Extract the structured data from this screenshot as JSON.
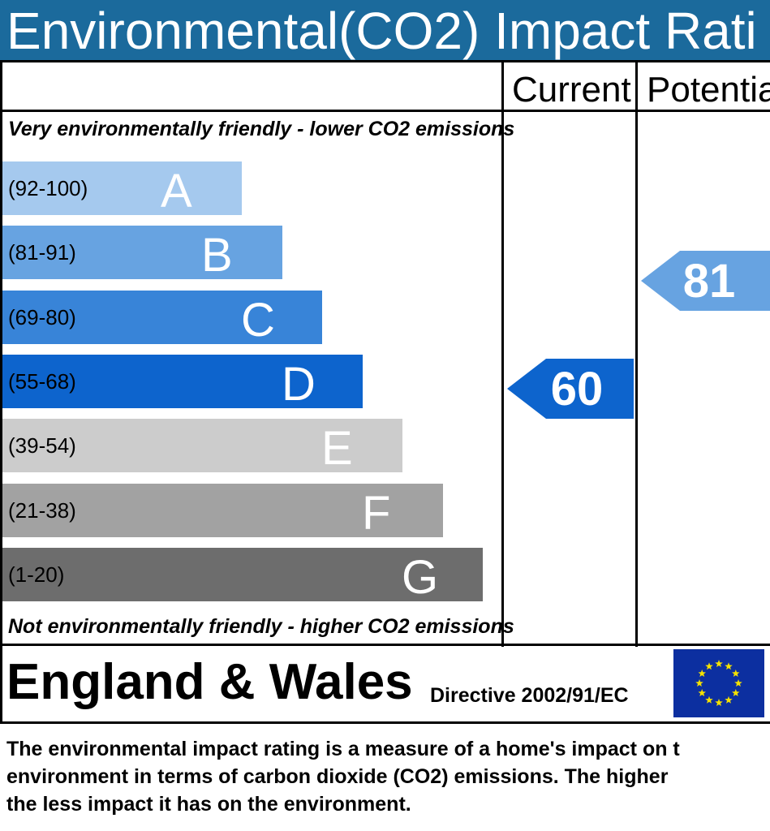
{
  "header": {
    "title": "Environmental(CO2) Impact Rati"
  },
  "columns": {
    "current": "Current",
    "potential": "Potentia"
  },
  "captions": {
    "top": "Very environmentally friendly - lower CO2 emissions",
    "bottom": "Not environmentally friendly - higher CO2 emissions"
  },
  "chart_data": {
    "type": "bar",
    "bands": [
      {
        "range": "(92-100)",
        "letter": "A",
        "color": "#a5c9ee"
      },
      {
        "range": "(81-91)",
        "letter": "B",
        "color": "#67a3e1"
      },
      {
        "range": "(69-80)",
        "letter": "C",
        "color": "#3884d8"
      },
      {
        "range": "(55-68)",
        "letter": "D",
        "color": "#0d64cd"
      },
      {
        "range": "(39-54)",
        "letter": "E",
        "color": "#cccccc"
      },
      {
        "range": "(21-38)",
        "letter": "F",
        "color": "#a2a2a2"
      },
      {
        "range": "(1-20)",
        "letter": "G",
        "color": "#6d6d6d"
      }
    ],
    "current": {
      "value": "60",
      "band": "D",
      "color": "#0d64cd"
    },
    "potential": {
      "value": "81",
      "band": "B",
      "color": "#67a3e1"
    }
  },
  "footer": {
    "country": "England & Wales",
    "directive": "Directive 2002/91/EC",
    "flag_colors": {
      "field": "#0c2fa0",
      "stars": "#f5e200"
    }
  },
  "description": {
    "lines": [
      "The environmental impact rating is a measure of a home's impact on t",
      "environment in terms of carbon dioxide (CO2) emissions. The higher",
      "the less impact it has on the environment."
    ]
  }
}
